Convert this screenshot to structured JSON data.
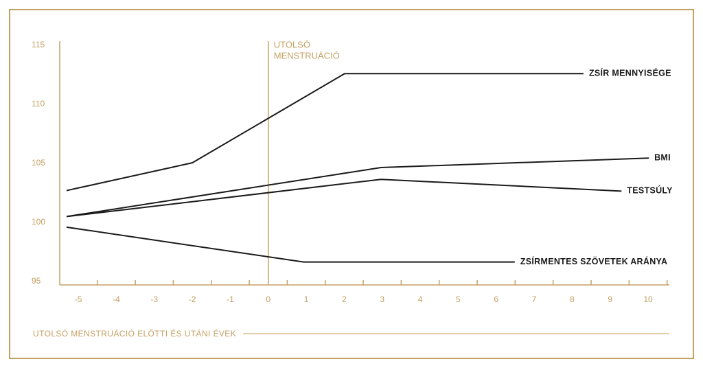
{
  "chart_data": {
    "type": "line",
    "x_axis_label": "UTOLSÓ MENSTRUÁCIÓ ELŐTTI ÉS UTÁNI ÉVEK",
    "vline": 0,
    "vline_label": [
      "UTOLSÓ",
      "MENSTRUÁCIÓ"
    ],
    "xlim": [
      -5.49,
      10.56
    ],
    "ylim": [
      95,
      115
    ],
    "xticks": [
      -5,
      -4,
      -3,
      -2,
      -1,
      0,
      1,
      2,
      3,
      4,
      5,
      6,
      7,
      8,
      9,
      10
    ],
    "xtick_marks": [
      -4.5,
      -3.5,
      -2.5,
      -1.5,
      -0.5,
      0.5,
      1.5,
      2.5,
      3.5,
      4.5,
      5.5,
      6.5,
      7.5,
      8.5,
      9.5,
      10.5
    ],
    "yticks": [
      95,
      100,
      105,
      110,
      115
    ],
    "axis_color": "#c4a062",
    "series": [
      {
        "name": "ZSÍR MENNYISÉGE",
        "color": "#1a1a1a",
        "x": [
          -5.31,
          -2.0,
          2.01,
          8.3
        ],
        "values": [
          102.7,
          105.05,
          112.6,
          112.6
        ]
      },
      {
        "name": "BMI",
        "color": "#1a1a1a",
        "x": [
          -5.31,
          2.97,
          10.02
        ],
        "values": [
          100.5,
          104.65,
          105.45
        ]
      },
      {
        "name": "TESTSÚLY",
        "color": "#1a1a1a",
        "x": [
          -5.31,
          2.97,
          9.3
        ],
        "values": [
          100.5,
          103.65,
          102.65
        ]
      },
      {
        "name": "ZSÍRMENTES SZÖVETEK ARÁNYA",
        "color": "#1a1a1a",
        "x": [
          -5.31,
          0.93,
          6.49
        ],
        "values": [
          99.6,
          96.65,
          96.65
        ]
      }
    ]
  }
}
